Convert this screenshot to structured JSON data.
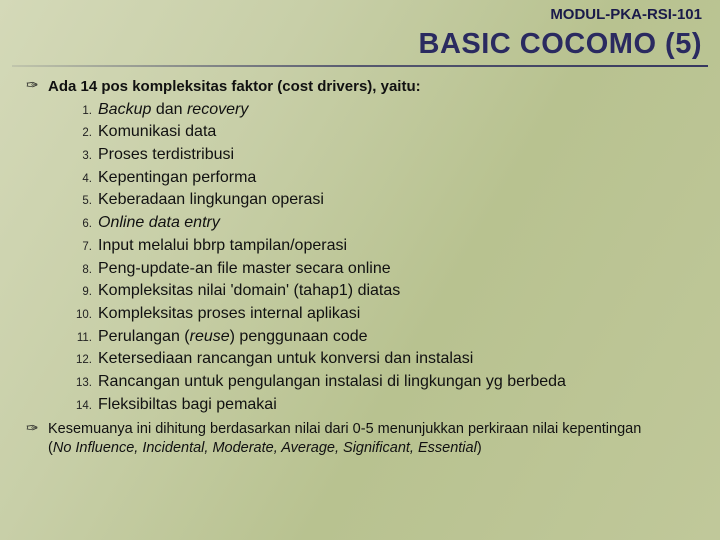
{
  "header": {
    "module_code": "MODUL-PKA-RSI-101",
    "title": "BASIC COCOMO (5)"
  },
  "intro": "Ada 14 pos kompleksitas faktor (cost drivers), yaitu:",
  "items": [
    {
      "n": "1.",
      "html": "<em>Backup</em> dan <em>recovery</em>"
    },
    {
      "n": "2.",
      "html": "Komunikasi data"
    },
    {
      "n": "3.",
      "html": "Proses terdistribusi"
    },
    {
      "n": "4.",
      "html": "Kepentingan performa"
    },
    {
      "n": "5.",
      "html": "Keberadaan lingkungan operasi"
    },
    {
      "n": "6.",
      "html": "<em>Online data entry</em>"
    },
    {
      "n": "7.",
      "html": "Input melalui bbrp tampilan/operasi"
    },
    {
      "n": "8.",
      "html": "Peng-update-an file master secara online"
    },
    {
      "n": "9.",
      "html": "Kompleksitas nilai 'domain' (tahap1) diatas"
    },
    {
      "n": "10.",
      "html": "Kompleksitas proses internal aplikasi"
    },
    {
      "n": "11.",
      "html": "Perulangan (<em>reuse</em>) penggunaan code"
    },
    {
      "n": "12.",
      "html": "Ketersediaan rancangan untuk konversi dan instalasi"
    },
    {
      "n": "13.",
      "html": "Rancangan untuk pengulangan instalasi di lingkungan yg berbeda"
    },
    {
      "n": "14.",
      "html": "Fleksibiltas bagi pemakai"
    }
  ],
  "footer": {
    "line1": "Kesemuanya ini dihitung berdasarkan nilai dari 0-5 menunjukkan perkiraan nilai kepentingan",
    "line2_html": "(<em>No Influence, Incidental, Moderate, Average, Significant, Essential</em>)"
  },
  "bullet_symbol": "✑",
  "colors": {
    "heading": "#2a2a60",
    "text": "#111111"
  }
}
